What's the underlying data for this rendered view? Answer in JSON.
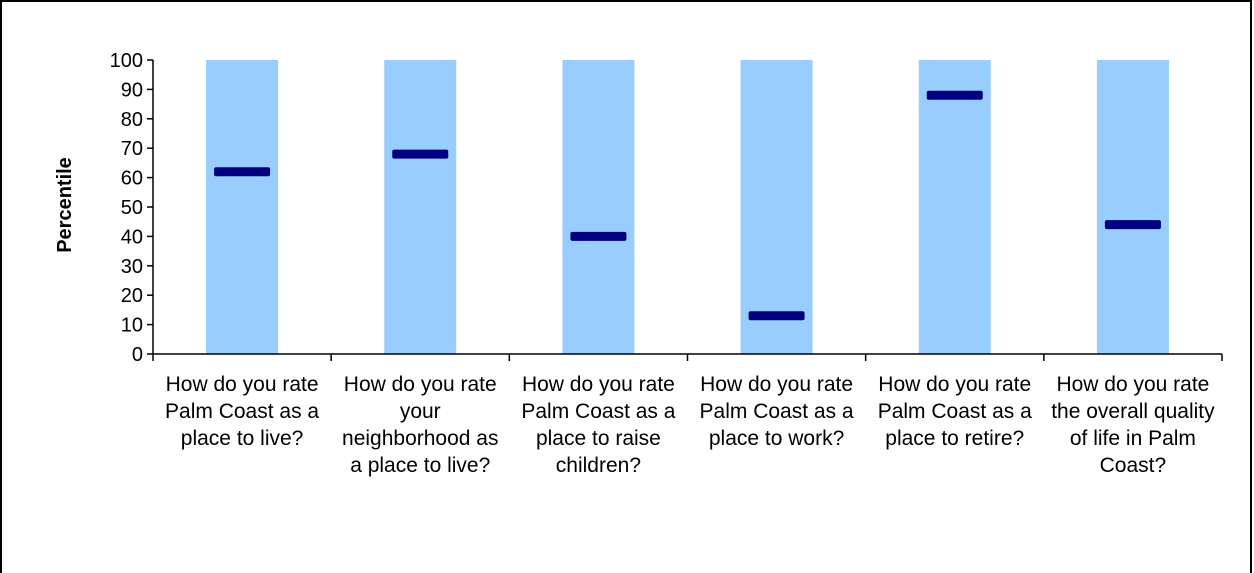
{
  "chart_data": {
    "type": "bar",
    "title": "",
    "ylabel": "Percentile",
    "xlabel": "",
    "ylim": [
      0,
      100
    ],
    "yticks": [
      "0",
      "10",
      "20",
      "30",
      "40",
      "50",
      "60",
      "70",
      "80",
      "90",
      "100"
    ],
    "categories": [
      "How do you rate Palm Coast as a place to live?",
      "How do you rate your neighborhood as a place to live?",
      "How do you rate Palm Coast as a place to raise children?",
      "How do you rate Palm Coast as a place to work?",
      "How do you rate Palm Coast as a place to retire?",
      "How do you rate the overall quality of life in Palm Coast?"
    ],
    "range_high": [
      100,
      100,
      100,
      100,
      100,
      100
    ],
    "range_low": [
      0,
      0,
      0,
      0,
      0,
      0
    ],
    "values": [
      62,
      68,
      40,
      13,
      88,
      44
    ],
    "colors": {
      "range": "#99ccff",
      "marker": "#000080",
      "axis": "#000000"
    }
  }
}
